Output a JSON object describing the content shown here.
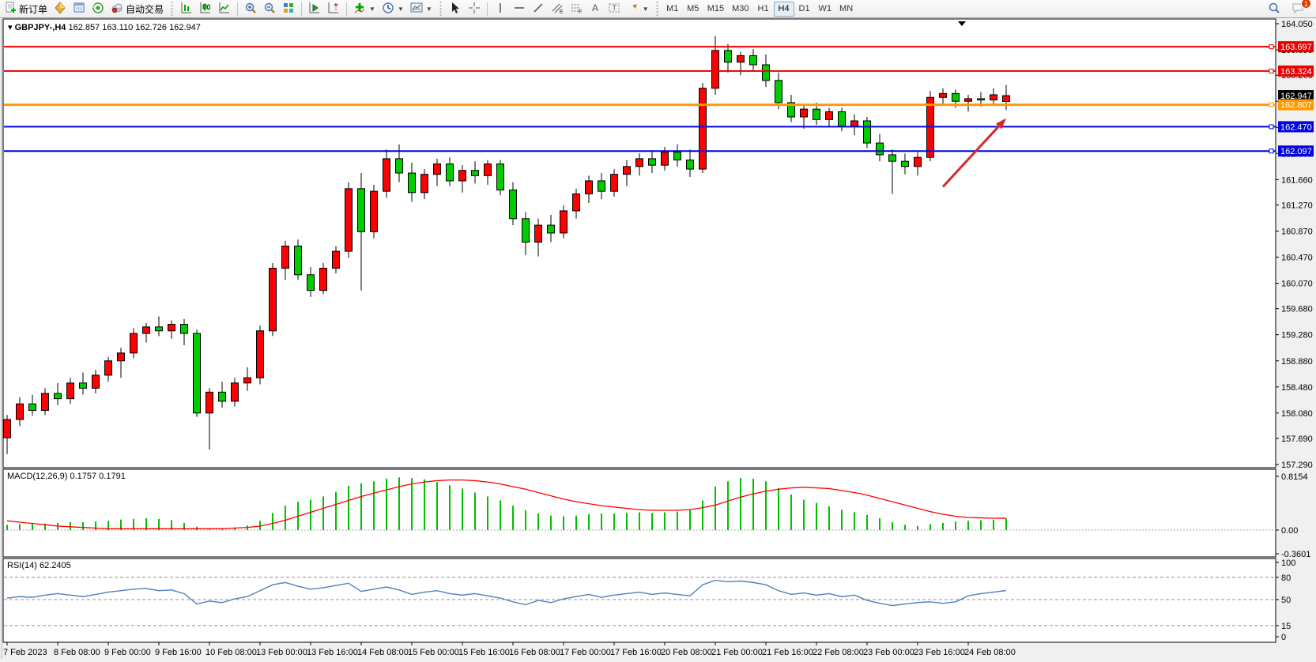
{
  "toolbar": {
    "new_order_label": "新订单",
    "autotrade_label": "自动交易",
    "timeframes": [
      "M1",
      "M5",
      "M15",
      "M30",
      "H1",
      "H4",
      "D1",
      "W1",
      "MN"
    ],
    "active_timeframe": "H4",
    "notification_count": "1",
    "icon_names": [
      "new-order",
      "market-watch",
      "data-window",
      "signals",
      "autotrading",
      "bar-chart",
      "candlestick-chart",
      "line-chart",
      "zoom-in",
      "zoom-out",
      "tile-windows",
      "auto-scroll",
      "chart-shift",
      "indicators",
      "periods",
      "templates",
      "cursor",
      "crosshair",
      "vertical-line",
      "horizontal-line",
      "trendline",
      "equidistant-channel",
      "fibonacci",
      "text",
      "text-label",
      "arrows",
      "search",
      "notifications"
    ]
  },
  "chart": {
    "symbol_title": "GBPJPY-,H4",
    "ohlc_line": "162.857 163.110 162.726 162.947"
  },
  "chart_data": {
    "type": "candlestick",
    "symbol": "GBPJPY-",
    "timeframe": "H4",
    "colors": {
      "up": "#ff0000",
      "down": "#00cc00",
      "outline": "#000000",
      "background": "#ffffff",
      "level_red": "#e80000",
      "level_orange": "#ff9900",
      "level_blue": "#0000e0",
      "current_price_bg": "#000000",
      "arrow": "#d22a2a"
    },
    "price_axis": {
      "top_price": 164.05,
      "bottom_price": 157.29,
      "ticks": [
        "164.050",
        "163.650",
        "163.260",
        "162.860",
        "162.460",
        "162.060",
        "161.660",
        "161.270",
        "160.870",
        "160.470",
        "160.070",
        "159.680",
        "159.280",
        "158.880",
        "158.480",
        "158.080",
        "157.690",
        "157.290"
      ]
    },
    "time_axis": {
      "labels": [
        {
          "bar": 0,
          "text": "7 Feb 2023"
        },
        {
          "bar": 4,
          "text": "8 Feb 08:00"
        },
        {
          "bar": 8,
          "text": "9 Feb 00:00"
        },
        {
          "bar": 12,
          "text": "9 Feb 16:00"
        },
        {
          "bar": 16,
          "text": "10 Feb 08:00"
        },
        {
          "bar": 20,
          "text": "13 Feb 00:00"
        },
        {
          "bar": 24,
          "text": "13 Feb 16:00"
        },
        {
          "bar": 28,
          "text": "14 Feb 08:00"
        },
        {
          "bar": 32,
          "text": "15 Feb 00:00"
        },
        {
          "bar": 36,
          "text": "15 Feb 16:00"
        },
        {
          "bar": 40,
          "text": "16 Feb 08:00"
        },
        {
          "bar": 44,
          "text": "17 Feb 00:00"
        },
        {
          "bar": 48,
          "text": "17 Feb 16:00"
        },
        {
          "bar": 52,
          "text": "20 Feb 08:00"
        },
        {
          "bar": 56,
          "text": "21 Feb 00:00"
        },
        {
          "bar": 60,
          "text": "21 Feb 16:00"
        },
        {
          "bar": 64,
          "text": "22 Feb 08:00"
        },
        {
          "bar": 68,
          "text": "23 Feb 00:00"
        },
        {
          "bar": 72,
          "text": "23 Feb 16:00"
        },
        {
          "bar": 76,
          "text": "24 Feb 08:00"
        }
      ]
    },
    "columns": [
      "time",
      "open",
      "high",
      "low",
      "close"
    ],
    "candles": [
      [
        "7 Feb 16:00",
        157.7,
        158.05,
        157.45,
        157.98
      ],
      [
        "7 Feb 20:00",
        157.98,
        158.32,
        157.88,
        158.22
      ],
      [
        "8 Feb 00:00",
        158.22,
        158.36,
        158.04,
        158.12
      ],
      [
        "8 Feb 04:00",
        158.12,
        158.46,
        158.05,
        158.38
      ],
      [
        "8 Feb 08:00",
        158.38,
        158.54,
        158.2,
        158.3
      ],
      [
        "8 Feb 12:00",
        158.3,
        158.62,
        158.22,
        158.54
      ],
      [
        "8 Feb 16:00",
        158.54,
        158.7,
        158.36,
        158.46
      ],
      [
        "8 Feb 20:00",
        158.46,
        158.74,
        158.38,
        158.66
      ],
      [
        "9 Feb 00:00",
        158.66,
        158.94,
        158.56,
        158.88
      ],
      [
        "9 Feb 04:00",
        158.88,
        159.08,
        158.62,
        159.0
      ],
      [
        "9 Feb 08:00",
        159.0,
        159.38,
        158.92,
        159.3
      ],
      [
        "9 Feb 12:00",
        159.3,
        159.46,
        159.16,
        159.4
      ],
      [
        "9 Feb 16:00",
        159.4,
        159.56,
        159.26,
        159.34
      ],
      [
        "9 Feb 20:00",
        159.34,
        159.5,
        159.22,
        159.44
      ],
      [
        "10 Feb 00:00",
        159.44,
        159.52,
        159.12,
        159.3
      ],
      [
        "10 Feb 04:00",
        159.3,
        159.36,
        158.02,
        158.08
      ],
      [
        "10 Feb 08:00",
        158.08,
        158.46,
        157.52,
        158.4
      ],
      [
        "10 Feb 12:00",
        158.4,
        158.56,
        158.16,
        158.26
      ],
      [
        "10 Feb 16:00",
        158.26,
        158.62,
        158.18,
        158.54
      ],
      [
        "10 Feb 20:00",
        158.54,
        158.78,
        158.42,
        158.62
      ],
      [
        "13 Feb 00:00",
        158.62,
        159.42,
        158.52,
        159.34
      ],
      [
        "13 Feb 04:00",
        159.34,
        160.38,
        159.26,
        160.3
      ],
      [
        "13 Feb 08:00",
        160.3,
        160.72,
        160.12,
        160.64
      ],
      [
        "13 Feb 12:00",
        160.64,
        160.74,
        160.12,
        160.2
      ],
      [
        "13 Feb 16:00",
        160.2,
        160.32,
        159.86,
        159.96
      ],
      [
        "13 Feb 20:00",
        159.96,
        160.38,
        159.9,
        160.3
      ],
      [
        "14 Feb 00:00",
        160.3,
        160.64,
        160.22,
        160.56
      ],
      [
        "14 Feb 04:00",
        160.56,
        161.62,
        160.46,
        161.52
      ],
      [
        "14 Feb 08:00",
        161.52,
        161.76,
        159.96,
        160.86
      ],
      [
        "14 Feb 12:00",
        160.86,
        161.58,
        160.76,
        161.48
      ],
      [
        "14 Feb 16:00",
        161.48,
        162.12,
        161.38,
        161.98
      ],
      [
        "14 Feb 20:00",
        161.98,
        162.2,
        161.62,
        161.76
      ],
      [
        "15 Feb 00:00",
        161.76,
        161.92,
        161.32,
        161.46
      ],
      [
        "15 Feb 04:00",
        161.46,
        161.82,
        161.36,
        161.74
      ],
      [
        "15 Feb 08:00",
        161.74,
        161.98,
        161.56,
        161.9
      ],
      [
        "15 Feb 12:00",
        161.9,
        162.0,
        161.56,
        161.64
      ],
      [
        "15 Feb 16:00",
        161.64,
        161.88,
        161.46,
        161.8
      ],
      [
        "15 Feb 20:00",
        161.8,
        161.94,
        161.6,
        161.72
      ],
      [
        "16 Feb 00:00",
        161.72,
        161.96,
        161.58,
        161.9
      ],
      [
        "16 Feb 04:00",
        161.9,
        161.96,
        161.42,
        161.5
      ],
      [
        "16 Feb 08:00",
        161.5,
        161.62,
        160.96,
        161.06
      ],
      [
        "16 Feb 12:00",
        161.06,
        161.16,
        160.5,
        160.7
      ],
      [
        "16 Feb 16:00",
        160.7,
        161.06,
        160.48,
        160.96
      ],
      [
        "16 Feb 20:00",
        160.96,
        161.12,
        160.7,
        160.84
      ],
      [
        "17 Feb 00:00",
        160.84,
        161.26,
        160.76,
        161.18
      ],
      [
        "17 Feb 04:00",
        161.18,
        161.52,
        161.06,
        161.44
      ],
      [
        "17 Feb 08:00",
        161.44,
        161.72,
        161.3,
        161.64
      ],
      [
        "17 Feb 12:00",
        161.64,
        161.76,
        161.36,
        161.48
      ],
      [
        "17 Feb 16:00",
        161.48,
        161.82,
        161.4,
        161.74
      ],
      [
        "17 Feb 20:00",
        161.74,
        161.96,
        161.56,
        161.86
      ],
      [
        "20 Feb 00:00",
        161.86,
        162.06,
        161.72,
        161.98
      ],
      [
        "20 Feb 04:00",
        161.98,
        162.1,
        161.76,
        161.88
      ],
      [
        "20 Feb 08:00",
        161.88,
        162.16,
        161.8,
        162.08
      ],
      [
        "20 Feb 12:00",
        162.08,
        162.2,
        161.86,
        161.96
      ],
      [
        "20 Feb 16:00",
        161.96,
        162.12,
        161.7,
        161.82
      ],
      [
        "20 Feb 20:00",
        161.82,
        163.14,
        161.76,
        163.06
      ],
      [
        "21 Feb 00:00",
        163.06,
        163.86,
        162.96,
        163.64
      ],
      [
        "21 Feb 04:00",
        163.64,
        163.74,
        163.3,
        163.46
      ],
      [
        "21 Feb 08:00",
        163.46,
        163.62,
        163.26,
        163.56
      ],
      [
        "21 Feb 12:00",
        163.56,
        163.66,
        163.34,
        163.42
      ],
      [
        "21 Feb 16:00",
        163.42,
        163.58,
        163.08,
        163.18
      ],
      [
        "21 Feb 20:00",
        163.18,
        163.3,
        162.74,
        162.84
      ],
      [
        "22 Feb 00:00",
        162.84,
        162.96,
        162.54,
        162.62
      ],
      [
        "22 Feb 04:00",
        162.62,
        162.82,
        162.44,
        162.74
      ],
      [
        "22 Feb 08:00",
        162.74,
        162.84,
        162.5,
        162.58
      ],
      [
        "22 Feb 12:00",
        162.58,
        162.76,
        162.46,
        162.7
      ],
      [
        "22 Feb 16:00",
        162.7,
        162.76,
        162.4,
        162.48
      ],
      [
        "22 Feb 20:00",
        162.48,
        162.66,
        162.34,
        162.56
      ],
      [
        "23 Feb 00:00",
        162.56,
        162.62,
        162.14,
        162.22
      ],
      [
        "23 Feb 04:00",
        162.22,
        162.36,
        161.94,
        162.04
      ],
      [
        "23 Feb 08:00",
        162.04,
        162.12,
        161.44,
        161.94
      ],
      [
        "23 Feb 12:00",
        161.94,
        162.06,
        161.74,
        161.86
      ],
      [
        "23 Feb 16:00",
        161.86,
        162.08,
        161.72,
        162.0
      ],
      [
        "23 Feb 20:00",
        162.0,
        163.02,
        161.94,
        162.92
      ],
      [
        "24 Feb 00:00",
        162.92,
        163.06,
        162.8,
        162.98
      ],
      [
        "24 Feb 04:00",
        162.98,
        163.04,
        162.76,
        162.86
      ],
      [
        "24 Feb 08:00",
        162.86,
        162.96,
        162.7,
        162.9
      ],
      [
        "24 Feb 12:00",
        162.9,
        163.0,
        162.78,
        162.88
      ],
      [
        "24 Feb 16:00",
        162.88,
        163.06,
        162.8,
        162.96
      ],
      [
        "24 Feb 20:00",
        162.857,
        163.11,
        162.726,
        162.947
      ]
    ],
    "current_price": {
      "label": "162.947",
      "value": 162.947
    },
    "levels": [
      {
        "value": 163.697,
        "label": "163.697",
        "color": "#e80000",
        "width": 2
      },
      {
        "value": 163.324,
        "label": "163.324",
        "color": "#e80000",
        "width": 2
      },
      {
        "value": 162.807,
        "label": "162.807",
        "color": "#ff9900",
        "width": 3
      },
      {
        "value": 162.47,
        "label": "162.470",
        "color": "#0000e0",
        "width": 2
      },
      {
        "value": 162.097,
        "label": "162.097",
        "color": "#0000e0",
        "width": 2
      }
    ],
    "annotation": {
      "type": "arrow",
      "color": "#d22a2a",
      "from_bar": 74,
      "from_price": 161.55,
      "to_bar": 79,
      "to_price": 162.6
    },
    "macd": {
      "label_full": "MACD(12,26,9) 0.1757 0.1791",
      "name": "MACD",
      "params": "12,26,9",
      "macd_current": 0.1757,
      "signal_current": 0.1791,
      "histogram_color": "#00c000",
      "signal_color": "#ff0000",
      "axis_labels": [
        {
          "text": "0.8154",
          "value": 0.8154
        },
        {
          "text": "0.00",
          "value": 0
        },
        {
          "text": "-0.3601",
          "value": -0.3601
        }
      ],
      "histogram": [
        0.08,
        0.09,
        0.1,
        0.1,
        0.11,
        0.12,
        0.12,
        0.13,
        0.14,
        0.16,
        0.17,
        0.18,
        0.17,
        0.15,
        0.11,
        0.05,
        0.02,
        0.02,
        0.04,
        0.07,
        0.14,
        0.26,
        0.37,
        0.43,
        0.46,
        0.51,
        0.58,
        0.67,
        0.71,
        0.74,
        0.78,
        0.8,
        0.79,
        0.77,
        0.73,
        0.68,
        0.63,
        0.57,
        0.51,
        0.45,
        0.37,
        0.3,
        0.25,
        0.22,
        0.21,
        0.22,
        0.24,
        0.25,
        0.25,
        0.26,
        0.27,
        0.26,
        0.27,
        0.28,
        0.31,
        0.45,
        0.66,
        0.74,
        0.79,
        0.78,
        0.74,
        0.64,
        0.54,
        0.46,
        0.41,
        0.36,
        0.31,
        0.27,
        0.23,
        0.18,
        0.12,
        0.08,
        0.06,
        0.09,
        0.11,
        0.13,
        0.14,
        0.15,
        0.16,
        0.1757
      ],
      "signal": [
        0.14,
        0.12,
        0.1,
        0.08,
        0.06,
        0.05,
        0.04,
        0.03,
        0.02,
        0.02,
        0.02,
        0.02,
        0.02,
        0.02,
        0.02,
        0.02,
        0.02,
        0.02,
        0.03,
        0.04,
        0.06,
        0.1,
        0.15,
        0.21,
        0.27,
        0.33,
        0.39,
        0.45,
        0.51,
        0.56,
        0.61,
        0.66,
        0.7,
        0.73,
        0.75,
        0.76,
        0.76,
        0.75,
        0.73,
        0.7,
        0.66,
        0.62,
        0.57,
        0.52,
        0.47,
        0.43,
        0.4,
        0.37,
        0.35,
        0.33,
        0.31,
        0.3,
        0.3,
        0.3,
        0.31,
        0.34,
        0.38,
        0.44,
        0.5,
        0.55,
        0.59,
        0.62,
        0.64,
        0.65,
        0.64,
        0.63,
        0.6,
        0.57,
        0.53,
        0.48,
        0.43,
        0.38,
        0.33,
        0.28,
        0.24,
        0.21,
        0.19,
        0.185,
        0.18,
        0.1791
      ]
    },
    "rsi": {
      "label_full": "RSI(14) 62.2405",
      "name": "RSI",
      "period": 14,
      "current": 62.2405,
      "line_color": "#4f81bd",
      "levels": [
        80,
        50,
        15
      ],
      "axis_labels": [
        {
          "text": "100",
          "value": 100
        },
        {
          "text": "80",
          "value": 80
        },
        {
          "text": "50",
          "value": 50
        },
        {
          "text": "15",
          "value": 15
        },
        {
          "text": "0",
          "value": 0
        }
      ],
      "values": [
        52,
        54,
        53,
        56,
        58,
        56,
        54,
        57,
        60,
        62,
        64,
        65,
        62,
        63,
        58,
        44,
        48,
        46,
        51,
        54,
        62,
        70,
        73,
        68,
        64,
        66,
        69,
        72,
        61,
        64,
        67,
        63,
        57,
        60,
        62,
        58,
        56,
        58,
        55,
        52,
        47,
        43,
        49,
        46,
        51,
        54,
        57,
        53,
        56,
        58,
        60,
        57,
        59,
        57,
        55,
        70,
        76,
        74,
        75,
        73,
        70,
        62,
        57,
        59,
        56,
        58,
        54,
        56,
        49,
        45,
        42,
        44,
        46,
        47,
        45,
        47,
        55,
        58,
        60,
        62.2405
      ]
    }
  }
}
